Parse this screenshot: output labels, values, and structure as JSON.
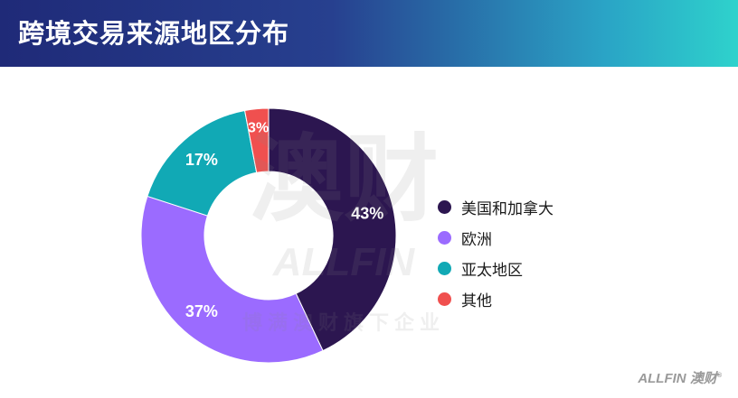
{
  "header": {
    "title": "跨境交易来源地区分布"
  },
  "watermark": {
    "logo_text": "澳财",
    "brand_en": "ALLFIN",
    "tagline": "博满澳财旗下企业"
  },
  "brand_mark": {
    "text": "ALLFIN",
    "cn": "澳财",
    "reg": "®"
  },
  "colors": {
    "header_start": "#1f2a78",
    "header_end": "#2ed2cc",
    "slice_americas": "#2c1650",
    "slice_europe": "#9b6bff",
    "slice_apac": "#11a9b5",
    "slice_other": "#f0504f"
  },
  "chart_data": {
    "type": "pie",
    "style": "donut",
    "title": "跨境交易来源地区分布",
    "legend_placement": "right",
    "slices": [
      {
        "name": "美国和加拿大",
        "value": 43,
        "label": "43%",
        "color": "#2c1650"
      },
      {
        "name": "欧洲",
        "value": 37,
        "label": "37%",
        "color": "#9b6bff"
      },
      {
        "name": "亚太地区",
        "value": 17,
        "label": "17%",
        "color": "#11a9b5"
      },
      {
        "name": "其他",
        "value": 3,
        "label": "3%",
        "color": "#f0504f"
      }
    ]
  }
}
